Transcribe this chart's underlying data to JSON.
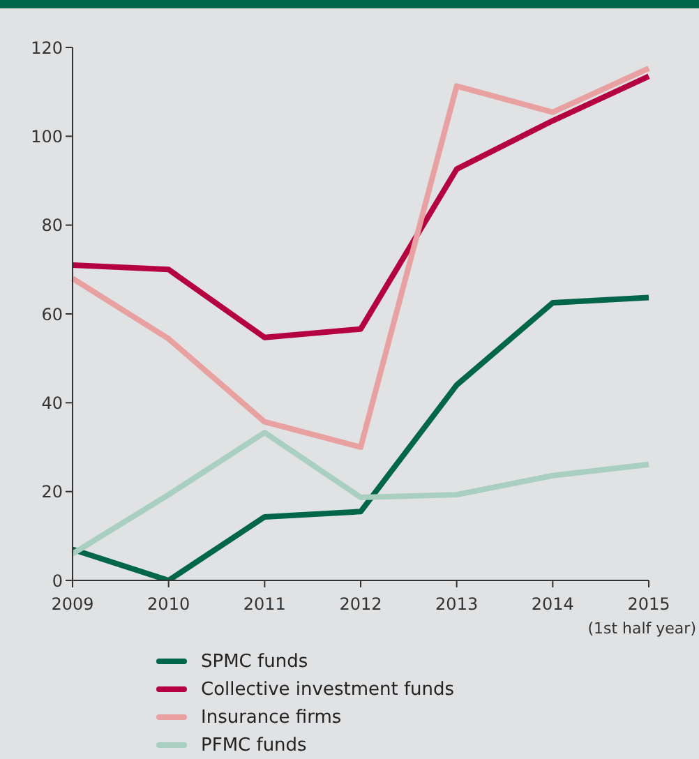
{
  "chart_data": {
    "type": "line",
    "categories": [
      "2009",
      "2010",
      "2011",
      "2012",
      "2013",
      "2014",
      "2015\n(1st half year)"
    ],
    "series": [
      {
        "name": "SPMC funds",
        "color": "#00664a",
        "values": [
          7,
          0,
          14.3,
          15.5,
          44,
          62.5,
          63.7
        ]
      },
      {
        "name": "Collective investment funds",
        "color": "#b5003f",
        "values": [
          71,
          70,
          54.7,
          56.6,
          92.6,
          103.5,
          113.5
        ]
      },
      {
        "name": "Insurance firms",
        "color": "#e8a0a0",
        "values": [
          68,
          54.4,
          35.7,
          30,
          111.3,
          105.4,
          115.3
        ]
      },
      {
        "name": "PFMC funds",
        "color": "#a8cfc0",
        "values": [
          6,
          19.3,
          33.3,
          18.7,
          19.3,
          23.6,
          26.1
        ]
      }
    ],
    "ylim": [
      0,
      120
    ],
    "yticks": [
      0,
      20,
      40,
      60,
      80,
      100,
      120
    ],
    "grid": false,
    "legend": "bottom",
    "marker": "none",
    "line_style": "solid"
  }
}
